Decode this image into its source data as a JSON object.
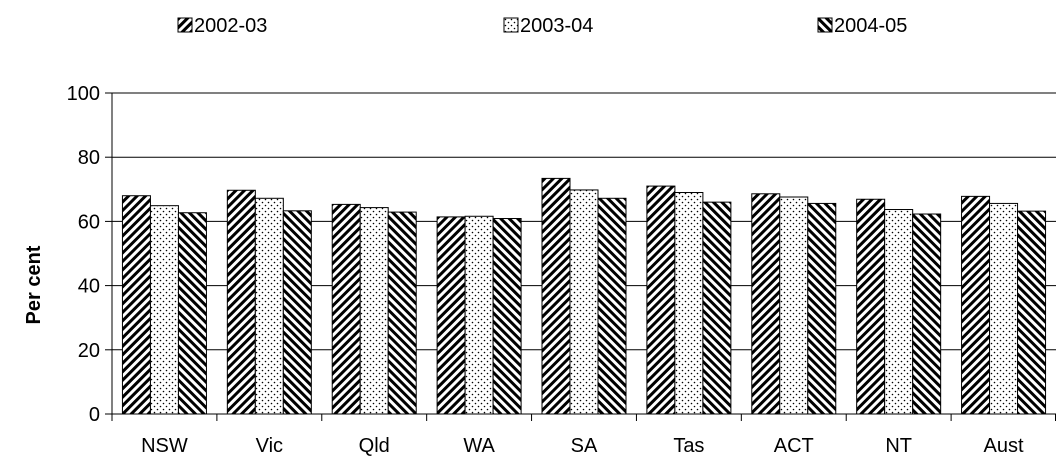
{
  "chart_data": {
    "type": "bar",
    "categories": [
      "NSW",
      "Vic",
      "Qld",
      "WA",
      "SA",
      "Tas",
      "ACT",
      "NT",
      "Aust"
    ],
    "series": [
      {
        "name": "2002-03",
        "values": [
          68.0,
          69.7,
          65.3,
          61.4,
          73.4,
          71.0,
          68.6,
          66.9,
          67.8
        ],
        "pattern": "back-diagonal"
      },
      {
        "name": "2003-04",
        "values": [
          64.9,
          67.2,
          64.3,
          61.6,
          69.8,
          69.0,
          67.6,
          63.7,
          65.6
        ],
        "pattern": "dots"
      },
      {
        "name": "2004-05",
        "values": [
          62.7,
          63.3,
          62.9,
          60.9,
          67.2,
          66.0,
          65.6,
          62.3,
          63.2
        ],
        "pattern": "forward-diagonal"
      }
    ],
    "title": "",
    "xlabel": "",
    "ylabel": "Per cent",
    "ylim": [
      0,
      100
    ],
    "yticks": [
      "0",
      "20",
      "40",
      "60",
      "80",
      "100"
    ],
    "grid": true,
    "legend_position": "top"
  }
}
